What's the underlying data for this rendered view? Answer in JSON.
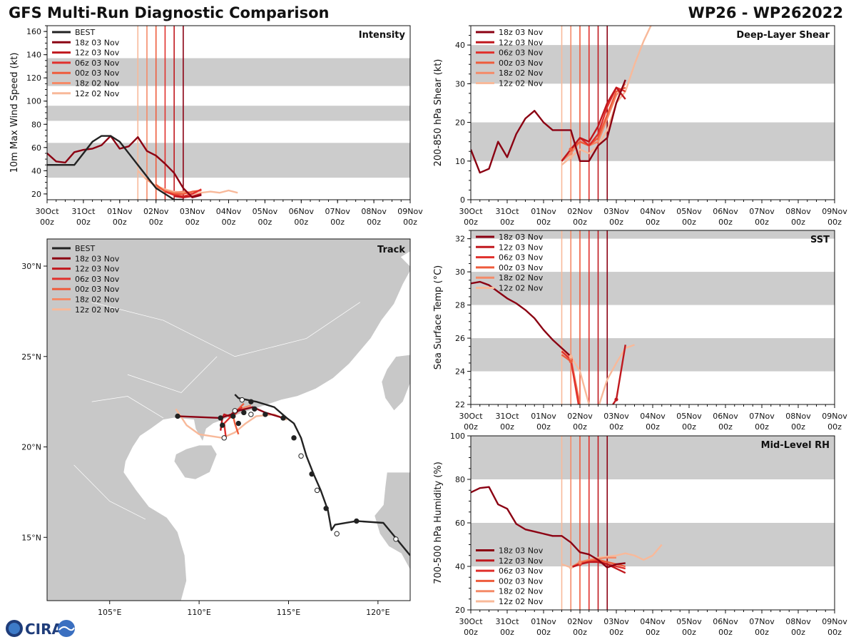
{
  "header": {
    "title": "GFS Multi-Run Diagnostic Comparison",
    "storm_id": "WP26 - WP262022"
  },
  "logo": {
    "text": "CIRA"
  },
  "colors": {
    "best": "#222222",
    "r18z03": "#8b0012",
    "r12z03": "#c0181e",
    "r06z03": "#e0302c",
    "r00z03": "#ee5c3c",
    "r18z02": "#f48a68",
    "r12z02": "#f8b99a",
    "band": "#cccccc",
    "land": "#c8c8c8"
  },
  "time_axis": {
    "ticks": [
      "30Oct",
      "31Oct",
      "01Nov",
      "02Nov",
      "03Nov",
      "04Nov",
      "05Nov",
      "06Nov",
      "07Nov",
      "08Nov",
      "09Nov"
    ],
    "sub": "00z",
    "run_lines_days": [
      2.5,
      2.75,
      3.0,
      3.25,
      3.5,
      3.75
    ]
  },
  "chart_data": [
    {
      "id": "intensity",
      "type": "line",
      "title": "Intensity",
      "ylabel": "10m Max Wind Speed (kt)",
      "ylim": [
        15,
        165
      ],
      "yticks": [
        20,
        40,
        60,
        80,
        100,
        120,
        140,
        160
      ],
      "bands": [
        [
          34,
          64
        ],
        [
          83,
          96
        ],
        [
          113,
          137
        ]
      ],
      "legend": [
        "BEST",
        "18z 03 Nov",
        "12z 03 Nov",
        "06z 03 Nov",
        "00z 03 Nov",
        "18z 02 Nov",
        "12z 02 Nov"
      ],
      "series": [
        {
          "name": "BEST",
          "color": "best",
          "x": [
            0,
            0.75,
            1.25,
            1.5,
            1.75,
            2.0,
            2.25,
            2.5,
            2.75,
            3.0,
            3.25,
            3.5,
            3.75
          ],
          "y": [
            45,
            45,
            65,
            70,
            70,
            65,
            55,
            45,
            35,
            25,
            20,
            15,
            15
          ]
        },
        {
          "name": "18z 03 Nov",
          "color": "r18z03",
          "x": [
            0,
            0.25,
            0.5,
            0.75,
            1.0,
            1.25,
            1.5,
            1.75,
            2.0,
            2.25,
            2.5,
            2.75,
            3.0,
            3.25,
            3.5,
            3.75,
            4.0,
            4.25
          ],
          "y": [
            55,
            48,
            47,
            56,
            58,
            59,
            62,
            70,
            59,
            61,
            69,
            57,
            53,
            46,
            38,
            25,
            17,
            19
          ]
        },
        {
          "name": "12z 03 Nov",
          "color": "r12z03",
          "x": [
            3.5,
            3.75,
            4.0,
            4.25
          ],
          "y": [
            18,
            17,
            18,
            20
          ]
        },
        {
          "name": "06z 03 Nov",
          "color": "r06z03",
          "x": [
            3.25,
            3.5,
            3.75,
            4.0,
            4.25
          ],
          "y": [
            22,
            19,
            18,
            20,
            24
          ]
        },
        {
          "name": "00z 03 Nov",
          "color": "r00z03",
          "x": [
            3.0,
            3.25,
            3.5,
            3.75,
            4.0,
            4.25
          ],
          "y": [
            28,
            22,
            20,
            20,
            22,
            23
          ]
        },
        {
          "name": "18z 02 Nov",
          "color": "r18z02",
          "x": [
            2.75,
            3.0,
            3.25,
            3.5,
            3.75,
            4.0
          ],
          "y": [
            33,
            26,
            23,
            21,
            22,
            21
          ]
        },
        {
          "name": "12z 02 Nov",
          "color": "r12z02",
          "x": [
            2.5,
            2.75,
            3.0,
            3.25,
            3.5,
            3.75,
            4.0,
            4.25,
            4.5,
            4.75,
            5.0,
            5.25
          ],
          "y": [
            40,
            32,
            27,
            24,
            22,
            21,
            20,
            21,
            22,
            21,
            23,
            21
          ]
        }
      ]
    },
    {
      "id": "shear",
      "type": "line",
      "title": "Deep-Layer Shear",
      "ylabel": "200-850 hPa Shear (kt)",
      "ylim": [
        0,
        45
      ],
      "yticks": [
        0,
        10,
        20,
        30,
        40
      ],
      "bands": [
        [
          10,
          20
        ],
        [
          30,
          40
        ]
      ],
      "legend": [
        "18z 03 Nov",
        "12z 03 Nov",
        "06z 03 Nov",
        "00z 03 Nov",
        "18z 02 Nov",
        "12z 02 Nov"
      ],
      "series": [
        {
          "name": "18z 03 Nov",
          "color": "r18z03",
          "x": [
            0,
            0.25,
            0.5,
            0.75,
            1.0,
            1.25,
            1.5,
            1.75,
            2.0,
            2.25,
            2.5,
            2.75,
            3.0,
            3.25,
            3.5,
            3.75,
            4.0,
            4.25
          ],
          "y": [
            13,
            7,
            8,
            15,
            11,
            17,
            21,
            23,
            20,
            18,
            18,
            18,
            10,
            10,
            14,
            16,
            25,
            31
          ]
        },
        {
          "name": "12z 03 Nov",
          "color": "r12z03",
          "x": [
            2.5,
            2.75,
            3.0,
            3.25,
            3.5,
            3.75,
            4.0,
            4.25
          ],
          "y": [
            10,
            13,
            16,
            15,
            19,
            25,
            29,
            26
          ]
        },
        {
          "name": "06z 03 Nov",
          "color": "r06z03",
          "x": [
            2.5,
            2.75,
            3.0,
            3.25,
            3.5,
            3.75,
            4.0,
            4.25
          ],
          "y": [
            10,
            13,
            16,
            14,
            17,
            24,
            29,
            28
          ]
        },
        {
          "name": "00z 03 Nov",
          "color": "r00z03",
          "x": [
            2.5,
            2.75,
            3.0,
            3.25,
            3.5,
            3.75,
            4.0,
            4.25
          ],
          "y": [
            10,
            13,
            15,
            14,
            16,
            22,
            28,
            29
          ]
        },
        {
          "name": "18z 02 Nov",
          "color": "r18z02",
          "x": [
            2.5,
            2.75,
            3.0,
            3.25,
            3.5,
            3.75,
            4.0,
            4.25
          ],
          "y": [
            10,
            12,
            15,
            14,
            15,
            21,
            27,
            30
          ]
        },
        {
          "name": "12z 02 Nov",
          "color": "r12z02",
          "x": [
            2.5,
            2.75,
            3.0,
            3.25,
            3.5,
            3.75,
            4.0,
            4.25,
            4.5,
            4.75,
            5.0
          ],
          "y": [
            9,
            11,
            13,
            12,
            14,
            18,
            25,
            28,
            35,
            41,
            46
          ]
        }
      ]
    },
    {
      "id": "sst",
      "type": "line",
      "title": "SST",
      "ylabel": "Sea Surface Temp (°C)",
      "ylim": [
        22,
        32.5
      ],
      "yticks": [
        22,
        24,
        26,
        28,
        30,
        32
      ],
      "bands": [
        [
          24,
          26
        ],
        [
          28,
          30
        ],
        [
          32,
          32.5
        ]
      ],
      "legend": [
        "18z 03 Nov",
        "12z 03 Nov",
        "06z 03 Nov",
        "00z 03 Nov",
        "18z 02 Nov",
        "12z 02 Nov"
      ],
      "series": [
        {
          "name": "18z 03 Nov",
          "color": "r18z03",
          "x": [
            0,
            0.25,
            0.5,
            0.75,
            1.0,
            1.25,
            1.5,
            1.75,
            2.0,
            2.25,
            2.5,
            2.75
          ],
          "y": [
            29.3,
            29.4,
            29.2,
            28.8,
            28.4,
            28.1,
            27.7,
            27.2,
            26.5,
            25.9,
            25.4,
            24.9
          ]
        },
        {
          "name": "12z 03 Nov",
          "color": "r12z03",
          "x": [
            3.75,
            4.0,
            4.25
          ],
          "y": [
            21.5,
            22.3,
            25.6
          ]
        },
        {
          "name": "06z 03 Nov",
          "color": "r06z03",
          "x": [
            2.5,
            2.75,
            3.0
          ],
          "y": [
            25.2,
            24.7,
            21.5
          ]
        },
        {
          "name": "00z 03 Nov",
          "color": "r00z03",
          "x": [
            2.5,
            2.75,
            3.0
          ],
          "y": [
            25.0,
            24.6,
            21.8
          ]
        },
        {
          "name": "18z 02 Nov",
          "color": "r18z02",
          "x": [
            2.5,
            2.75,
            3.0,
            3.25
          ],
          "y": [
            25.2,
            24.8,
            22.0,
            21.5
          ]
        },
        {
          "name": "12z 02 Nov",
          "color": "r12z02",
          "x": [
            2.5,
            2.75,
            3.0,
            3.25,
            3.5,
            3.75,
            4.0,
            4.25,
            4.5
          ],
          "y": [
            25.3,
            24.9,
            24.0,
            22.0,
            21.8,
            23.5,
            24.5,
            25.4,
            25.6
          ]
        }
      ]
    },
    {
      "id": "rh",
      "type": "line",
      "title": "Mid-Level RH",
      "ylabel": "700-500 hPa Humidity (%)",
      "ylim": [
        20,
        100
      ],
      "yticks": [
        20,
        40,
        60,
        80,
        100
      ],
      "bands": [
        [
          40,
          60
        ],
        [
          80,
          100
        ]
      ],
      "legend": [
        "18z 03 Nov",
        "12z 03 Nov",
        "06z 03 Nov",
        "00z 03 Nov",
        "18z 02 Nov",
        "12z 02 Nov"
      ],
      "series": [
        {
          "name": "18z 03 Nov",
          "color": "r18z03",
          "x": [
            0,
            0.25,
            0.5,
            0.75,
            1.0,
            1.25,
            1.5,
            1.75,
            2.0,
            2.25,
            2.5,
            2.75,
            3.0,
            3.25,
            3.5,
            3.75,
            4.0,
            4.25
          ],
          "y": [
            74,
            76,
            76.5,
            68.5,
            66.5,
            59.5,
            57,
            56,
            55,
            54,
            54,
            51,
            46.5,
            45.5,
            43,
            39.5,
            41,
            41.5
          ]
        },
        {
          "name": "12z 03 Nov",
          "color": "r12z03",
          "x": [
            2.75,
            3.0,
            3.25,
            3.5,
            3.75,
            4.0,
            4.25
          ],
          "y": [
            39.5,
            41,
            42,
            42,
            41,
            39,
            37
          ]
        },
        {
          "name": "06z 03 Nov",
          "color": "r06z03",
          "x": [
            2.75,
            3.0,
            3.25,
            3.5,
            3.75,
            4.0,
            4.25
          ],
          "y": [
            39.5,
            41,
            42,
            42.5,
            41,
            40,
            39
          ]
        },
        {
          "name": "00z 03 Nov",
          "color": "r00z03",
          "x": [
            2.75,
            3.0,
            3.25,
            3.5,
            3.75,
            4.0,
            4.25
          ],
          "y": [
            39.5,
            41.5,
            42.5,
            43,
            42,
            41,
            40
          ]
        },
        {
          "name": "18z 02 Nov",
          "color": "r18z02",
          "x": [
            2.75,
            3.0,
            3.25,
            3.5,
            3.75,
            4.0
          ],
          "y": [
            39.5,
            42,
            43,
            43.5,
            44,
            44
          ]
        },
        {
          "name": "12z 02 Nov",
          "color": "r12z02",
          "x": [
            2.5,
            2.75,
            3.0,
            3.25,
            3.5,
            3.75,
            4.0,
            4.25,
            4.5,
            4.75,
            5.0,
            5.25
          ],
          "y": [
            41,
            39.5,
            41,
            43,
            44,
            44.5,
            45,
            46,
            45,
            43,
            45,
            50
          ]
        }
      ]
    },
    {
      "id": "track",
      "type": "scatter",
      "title": "Track",
      "lon_range": [
        101.5,
        121.8
      ],
      "lat_range": [
        11.5,
        31.5
      ],
      "lon_ticks": [
        105,
        110,
        115,
        120
      ],
      "lon_tick_labels": [
        "105°E",
        "110°E",
        "115°E",
        "120°E"
      ],
      "lat_ticks": [
        15,
        20,
        25,
        30
      ],
      "lat_tick_labels": [
        "15°N",
        "20°N",
        "25°N",
        "30°N"
      ],
      "legend": [
        "BEST",
        "18z 03 Nov",
        "12z 03 Nov",
        "06z 03 Nov",
        "00z 03 Nov",
        "18z 02 Nov",
        "12z 02 Nov"
      ],
      "series": [
        {
          "name": "BEST",
          "color": "best",
          "lon": [
            121.8,
            121.3,
            120.3,
            118.8,
            117.6,
            117.4,
            117.2,
            116.8,
            116.4,
            116.0,
            115.7,
            115.3,
            114.9,
            114.2,
            113.2,
            112.2,
            112.0
          ],
          "lat": [
            14.0,
            14.6,
            15.8,
            15.9,
            15.7,
            15.4,
            16.5,
            17.6,
            18.5,
            19.5,
            20.5,
            21.3,
            21.6,
            22.2,
            22.5,
            22.7,
            22.9
          ]
        },
        {
          "name": "18z 03 Nov",
          "color": "r18z03",
          "lon": [
            108.8,
            111.2,
            111.8,
            112.2,
            112.6,
            113.0,
            113.7,
            114.7
          ],
          "lat": [
            21.7,
            21.6,
            21.8,
            22.0,
            22.1,
            22.2,
            21.9,
            21.6
          ]
        },
        {
          "name": "12z 03 Nov",
          "color": "r12z03",
          "lon": [
            111.2,
            111.3,
            111.4,
            111.7,
            112.0,
            112.3
          ],
          "lat": [
            20.9,
            21.6,
            21.8,
            21.7,
            22.0,
            22.1
          ]
        },
        {
          "name": "06z 03 Nov",
          "color": "r06z03",
          "lon": [
            111.5,
            111.4,
            111.7,
            112.0,
            112.2,
            112.4
          ],
          "lat": [
            20.5,
            21.3,
            21.6,
            21.8,
            22.0,
            22.2
          ]
        },
        {
          "name": "00z 03 Nov",
          "color": "r00z03",
          "lon": [
            112.2,
            112.0,
            111.9,
            112.2,
            112.5
          ],
          "lat": [
            20.7,
            21.3,
            21.7,
            22.1,
            22.4
          ]
        },
        {
          "name": "18z 02 Nov",
          "color": "r18z02",
          "lon": [
            112.0,
            112.3,
            112.6,
            112.9
          ],
          "lat": [
            21.9,
            22.1,
            22.2,
            22.3
          ]
        },
        {
          "name": "12z 02 Nov",
          "color": "r12z02",
          "lon": [
            108.7,
            109.3,
            110.0,
            111.3,
            112.0,
            112.6,
            113.2,
            114.2,
            114.9
          ],
          "lat": [
            22.1,
            21.2,
            20.7,
            20.5,
            20.8,
            21.3,
            21.7,
            21.8,
            21.5
          ]
        }
      ],
      "markers": [
        {
          "lon": 108.8,
          "lat": 21.7,
          "filled": true
        },
        {
          "lon": 111.2,
          "lat": 21.6,
          "filled": true
        },
        {
          "lon": 111.3,
          "lat": 21.2,
          "filled": true
        },
        {
          "lon": 111.9,
          "lat": 21.7,
          "filled": true
        },
        {
          "lon": 112.2,
          "lat": 21.3,
          "filled": true
        },
        {
          "lon": 112.5,
          "lat": 21.9,
          "filled": true
        },
        {
          "lon": 113.1,
          "lat": 22.1,
          "filled": true
        },
        {
          "lon": 113.7,
          "lat": 21.8,
          "filled": true
        },
        {
          "lon": 114.7,
          "lat": 21.6,
          "filled": true
        },
        {
          "lon": 112.9,
          "lat": 22.5,
          "filled": true
        },
        {
          "lon": 115.3,
          "lat": 20.5,
          "filled": true
        },
        {
          "lon": 116.3,
          "lat": 18.5,
          "filled": true
        },
        {
          "lon": 117.1,
          "lat": 16.6,
          "filled": true
        },
        {
          "lon": 118.8,
          "lat": 15.9,
          "filled": true
        },
        {
          "lon": 111.4,
          "lat": 20.5,
          "filled": false
        },
        {
          "lon": 112.0,
          "lat": 22.0,
          "filled": false
        },
        {
          "lon": 112.4,
          "lat": 22.6,
          "filled": false
        },
        {
          "lon": 112.9,
          "lat": 21.8,
          "filled": false
        },
        {
          "lon": 115.7,
          "lat": 19.5,
          "filled": false
        },
        {
          "lon": 116.6,
          "lat": 17.6,
          "filled": false
        },
        {
          "lon": 117.7,
          "lat": 15.2,
          "filled": false
        },
        {
          "lon": 121.0,
          "lat": 14.9,
          "filled": false
        }
      ]
    }
  ]
}
